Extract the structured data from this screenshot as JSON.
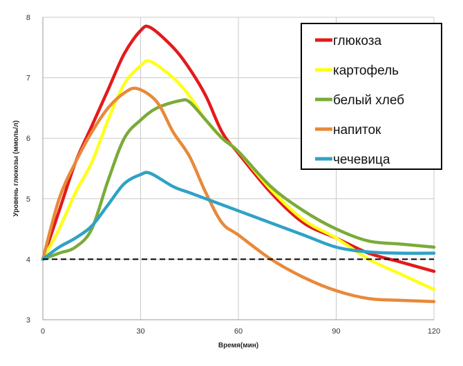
{
  "chart_data": {
    "type": "line",
    "title": "",
    "xlabel": "Время(мин)",
    "ylabel": "Уровень глюкозы (ммоль/л)",
    "xlim": [
      0,
      120
    ],
    "ylim": [
      3,
      8
    ],
    "xticks": [
      0,
      30,
      60,
      90,
      120
    ],
    "yticks": [
      3,
      4,
      5,
      6,
      7,
      8
    ],
    "grid": true,
    "legend_position": "top-right",
    "reference_line": {
      "y": 4,
      "style": "dashed",
      "color": "#000000"
    },
    "series": [
      {
        "name": "глюкоза",
        "color": "#e31a1c",
        "x": [
          0,
          5,
          10,
          15,
          20,
          25,
          30,
          33,
          40,
          45,
          50,
          55,
          60,
          70,
          80,
          90,
          100,
          110,
          120
        ],
        "y": [
          4,
          4.8,
          5.6,
          6.2,
          6.8,
          7.4,
          7.78,
          7.83,
          7.5,
          7.15,
          6.7,
          6.1,
          5.75,
          5.1,
          4.6,
          4.35,
          4.1,
          3.95,
          3.8
        ]
      },
      {
        "name": "картофель",
        "color": "#ffff1a",
        "x": [
          0,
          5,
          10,
          15,
          20,
          25,
          30,
          33,
          40,
          45,
          50,
          55,
          60,
          70,
          80,
          90,
          100,
          110,
          120
        ],
        "y": [
          4,
          4.5,
          5.1,
          5.6,
          6.3,
          6.9,
          7.2,
          7.27,
          7.0,
          6.7,
          6.3,
          6.0,
          5.78,
          5.15,
          4.65,
          4.35,
          4.0,
          3.75,
          3.5
        ]
      },
      {
        "name": "белый хлеб",
        "color": "#7aab3a",
        "x": [
          0,
          5,
          10,
          15,
          20,
          25,
          30,
          35,
          42,
          45,
          50,
          55,
          60,
          70,
          80,
          90,
          100,
          110,
          120
        ],
        "y": [
          4,
          4.1,
          4.2,
          4.5,
          5.3,
          6.0,
          6.3,
          6.5,
          6.62,
          6.6,
          6.3,
          6.0,
          5.78,
          5.2,
          4.8,
          4.5,
          4.3,
          4.25,
          4.2
        ]
      },
      {
        "name": "напиток",
        "color": "#e8893a",
        "x": [
          0,
          5,
          10,
          15,
          20,
          25,
          29,
          35,
          40,
          45,
          50,
          55,
          60,
          70,
          80,
          90,
          100,
          110,
          120
        ],
        "y": [
          4,
          5.0,
          5.6,
          6.1,
          6.5,
          6.75,
          6.82,
          6.6,
          6.1,
          5.7,
          5.1,
          4.6,
          4.4,
          4.0,
          3.7,
          3.48,
          3.35,
          3.32,
          3.3
        ]
      },
      {
        "name": "чечевица",
        "color": "#2fa2c6",
        "x": [
          0,
          5,
          10,
          15,
          20,
          25,
          30,
          33,
          40,
          45,
          50,
          60,
          70,
          80,
          90,
          100,
          110,
          120
        ],
        "y": [
          4,
          4.2,
          4.35,
          4.55,
          4.9,
          5.25,
          5.4,
          5.42,
          5.2,
          5.1,
          5.0,
          4.8,
          4.6,
          4.4,
          4.2,
          4.12,
          4.1,
          4.1
        ]
      }
    ]
  }
}
